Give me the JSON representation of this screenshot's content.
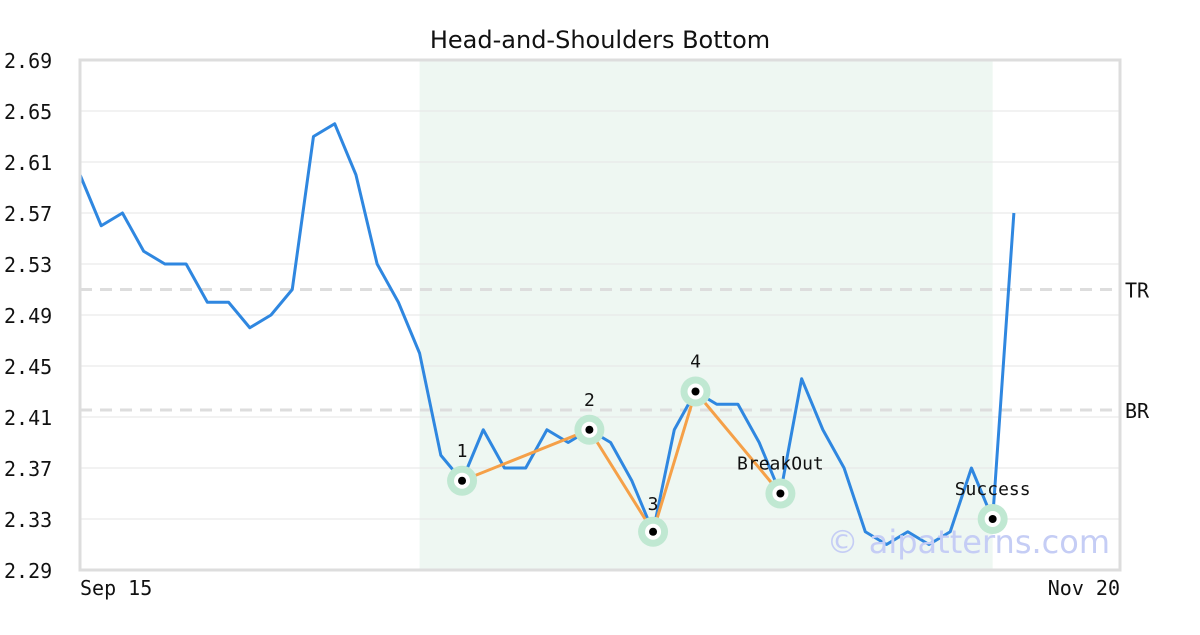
{
  "chart_data": {
    "type": "line",
    "title": "Head-and-Shoulders Bottom",
    "xlabel": "",
    "ylabel": "",
    "x_tick_labels": [
      "Sep 15",
      "Nov 20"
    ],
    "y_ticks": [
      "2.29",
      "2.33",
      "2.37",
      "2.41",
      "2.45",
      "2.49",
      "2.53",
      "2.57",
      "2.61",
      "2.65",
      "2.69"
    ],
    "ylim": [
      2.29,
      2.69
    ],
    "grid": true,
    "series": [
      {
        "values": [
          2.6,
          2.56,
          2.57,
          2.54,
          2.53,
          2.53,
          2.5,
          2.5,
          2.48,
          2.49,
          2.51,
          2.63,
          2.64,
          2.6,
          2.53,
          2.5,
          2.46,
          2.38,
          2.36,
          2.4,
          2.37,
          2.37,
          2.4,
          2.39,
          2.4,
          2.39,
          2.36,
          2.32,
          2.4,
          2.43,
          2.42,
          2.42,
          2.39,
          2.35,
          2.44,
          2.4,
          2.37,
          2.32,
          2.31,
          2.32,
          2.31,
          2.32,
          2.37,
          2.33,
          2.57
        ],
        "color": "#2f87e0"
      }
    ],
    "pattern_region": {
      "start_index": 16,
      "end_index": 43,
      "color": "#eef7f2"
    },
    "reference_lines": [
      {
        "label": "TR",
        "value": 2.51
      },
      {
        "label": "BR",
        "value": 2.4155
      }
    ],
    "pattern_points": [
      {
        "label": "1",
        "index": 18,
        "value": 2.36
      },
      {
        "label": "2",
        "index": 24,
        "value": 2.4
      },
      {
        "label": "3",
        "index": 27,
        "value": 2.32
      },
      {
        "label": "4",
        "index": 29,
        "value": 2.43
      },
      {
        "label": "BreakOut",
        "index": 33,
        "value": 2.35
      },
      {
        "label": "Success",
        "index": 43,
        "value": 2.33
      }
    ],
    "pattern_line": {
      "point_labels": [
        "1",
        "2",
        "3",
        "4",
        "BreakOut"
      ],
      "color": "#f5a048"
    },
    "watermark": "© aipatterns.com"
  }
}
